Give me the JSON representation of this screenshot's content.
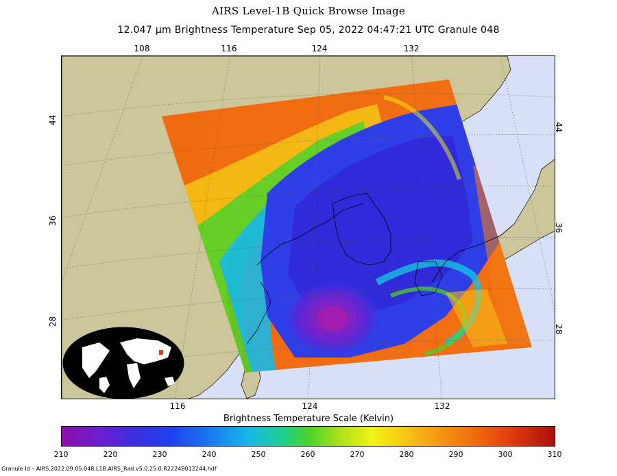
{
  "title": "AIRS Level-1B Quick Browse Image",
  "subtitle": "12.047 µm Brightness Temperature    Sep 05, 2022 04:47:21 UTC  Granule 048",
  "axis_ticks": {
    "top": [
      "108",
      "116",
      "124",
      "132"
    ],
    "bottom": [
      "116",
      "124",
      "132"
    ],
    "left": [
      "44",
      "36",
      "28"
    ],
    "right": [
      "44",
      "36",
      "28"
    ]
  },
  "colorscale": {
    "title": "Brightness Temperature Scale (Kelvin)",
    "labels": [
      "210",
      "220",
      "230",
      "240",
      "250",
      "260",
      "270",
      "280",
      "290",
      "300",
      "310"
    ],
    "min": 210,
    "max": 310
  },
  "footer": "Granule Id – AIRS.2022.09.05.048.L1B.AIRS_Rad.v5.0.25.0.R2224B012244.hdf",
  "colors": {
    "land": "#ccc69a",
    "ocean": "#d8e0f8",
    "inset_land": "#ffffff",
    "inset_ocean": "#000000",
    "marker": "#e04010"
  }
}
